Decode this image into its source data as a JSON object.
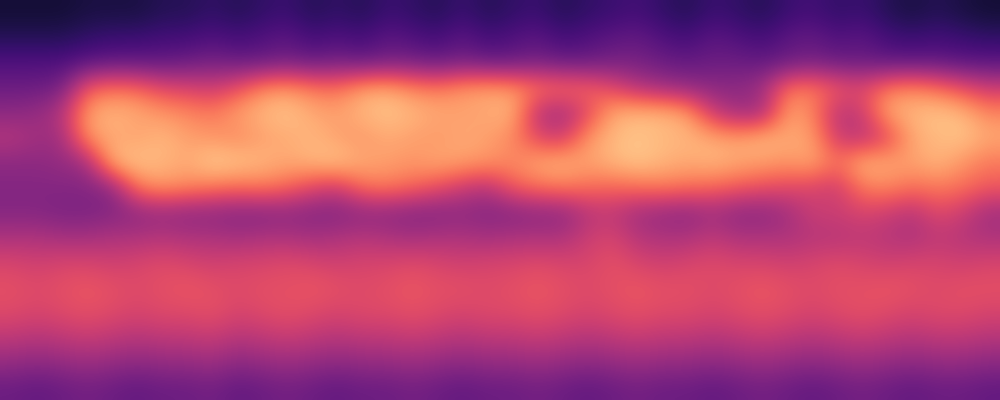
{
  "chart_data": {
    "type": "heatmap",
    "color": "magma",
    "tick_labels": false,
    "value_range": [
      0,
      1
    ],
    "cells": [
      [
        0.1,
        0.1,
        0.1,
        0.12,
        0.12,
        0.12,
        0.15,
        0.15,
        0.18,
        0.15,
        0.18,
        0.2,
        0.15,
        0.18,
        0.15,
        0.2,
        0.18,
        0.15,
        0.2,
        0.15,
        0.18,
        0.2,
        0.15,
        0.18,
        0.2,
        0.22,
        0.18,
        0.15,
        0.2,
        0.18,
        0.15,
        0.2,
        0.22,
        0.18,
        0.2,
        0.15,
        0.12,
        0.15,
        0.12,
        0.1
      ],
      [
        0.15,
        0.15,
        0.15,
        0.18,
        0.2,
        0.2,
        0.22,
        0.22,
        0.25,
        0.22,
        0.25,
        0.28,
        0.22,
        0.25,
        0.22,
        0.28,
        0.25,
        0.22,
        0.28,
        0.22,
        0.25,
        0.28,
        0.22,
        0.25,
        0.28,
        0.3,
        0.25,
        0.22,
        0.28,
        0.25,
        0.22,
        0.28,
        0.3,
        0.25,
        0.28,
        0.22,
        0.2,
        0.22,
        0.2,
        0.18
      ],
      [
        0.25,
        0.25,
        0.25,
        0.28,
        0.3,
        0.3,
        0.3,
        0.32,
        0.35,
        0.32,
        0.32,
        0.35,
        0.32,
        0.35,
        0.32,
        0.35,
        0.35,
        0.32,
        0.35,
        0.32,
        0.32,
        0.35,
        0.32,
        0.32,
        0.35,
        0.35,
        0.32,
        0.3,
        0.32,
        0.32,
        0.3,
        0.32,
        0.35,
        0.32,
        0.32,
        0.3,
        0.3,
        0.3,
        0.28,
        0.28
      ],
      [
        0.32,
        0.32,
        0.35,
        0.65,
        0.7,
        0.68,
        0.6,
        0.58,
        0.55,
        0.62,
        0.75,
        0.78,
        0.72,
        0.7,
        0.8,
        0.82,
        0.75,
        0.72,
        0.78,
        0.8,
        0.78,
        0.72,
        0.7,
        0.68,
        0.6,
        0.5,
        0.45,
        0.42,
        0.4,
        0.4,
        0.45,
        0.7,
        0.72,
        0.65,
        0.6,
        0.72,
        0.75,
        0.7,
        0.62,
        0.55
      ],
      [
        0.4,
        0.42,
        0.5,
        0.8,
        0.85,
        0.82,
        0.78,
        0.75,
        0.72,
        0.8,
        0.85,
        0.88,
        0.82,
        0.8,
        0.85,
        0.88,
        0.85,
        0.82,
        0.8,
        0.82,
        0.85,
        0.5,
        0.45,
        0.6,
        0.82,
        0.85,
        0.85,
        0.8,
        0.55,
        0.45,
        0.45,
        0.8,
        0.75,
        0.5,
        0.55,
        0.82,
        0.85,
        0.88,
        0.85,
        0.75
      ],
      [
        0.5,
        0.45,
        0.45,
        0.78,
        0.82,
        0.8,
        0.85,
        0.8,
        0.78,
        0.75,
        0.8,
        0.82,
        0.85,
        0.8,
        0.78,
        0.82,
        0.8,
        0.78,
        0.82,
        0.8,
        0.75,
        0.6,
        0.55,
        0.78,
        0.85,
        0.88,
        0.85,
        0.85,
        0.82,
        0.8,
        0.85,
        0.82,
        0.8,
        0.55,
        0.5,
        0.6,
        0.82,
        0.85,
        0.88,
        0.82
      ],
      [
        0.4,
        0.4,
        0.42,
        0.45,
        0.85,
        0.88,
        0.85,
        0.82,
        0.9,
        0.88,
        0.85,
        0.82,
        0.85,
        0.88,
        0.82,
        0.8,
        0.78,
        0.82,
        0.8,
        0.78,
        0.75,
        0.82,
        0.85,
        0.8,
        0.85,
        0.88,
        0.85,
        0.82,
        0.85,
        0.82,
        0.8,
        0.78,
        0.82,
        0.7,
        0.85,
        0.82,
        0.8,
        0.85,
        0.78,
        0.72
      ],
      [
        0.38,
        0.38,
        0.38,
        0.38,
        0.4,
        0.72,
        0.78,
        0.75,
        0.72,
        0.7,
        0.72,
        0.68,
        0.6,
        0.55,
        0.7,
        0.72,
        0.68,
        0.62,
        0.55,
        0.5,
        0.65,
        0.7,
        0.72,
        0.7,
        0.68,
        0.7,
        0.72,
        0.7,
        0.68,
        0.65,
        0.62,
        0.6,
        0.58,
        0.55,
        0.72,
        0.75,
        0.7,
        0.72,
        0.7,
        0.65
      ],
      [
        0.38,
        0.38,
        0.36,
        0.36,
        0.38,
        0.4,
        0.42,
        0.4,
        0.4,
        0.38,
        0.38,
        0.4,
        0.38,
        0.38,
        0.4,
        0.4,
        0.38,
        0.38,
        0.4,
        0.38,
        0.38,
        0.4,
        0.4,
        0.5,
        0.52,
        0.45,
        0.42,
        0.4,
        0.45,
        0.4,
        0.4,
        0.45,
        0.55,
        0.55,
        0.58,
        0.55,
        0.5,
        0.6,
        0.55,
        0.45
      ],
      [
        0.48,
        0.48,
        0.46,
        0.46,
        0.48,
        0.48,
        0.5,
        0.48,
        0.48,
        0.46,
        0.48,
        0.48,
        0.46,
        0.48,
        0.5,
        0.48,
        0.46,
        0.48,
        0.48,
        0.46,
        0.48,
        0.48,
        0.48,
        0.55,
        0.58,
        0.5,
        0.48,
        0.48,
        0.52,
        0.48,
        0.48,
        0.48,
        0.5,
        0.5,
        0.52,
        0.5,
        0.48,
        0.52,
        0.5,
        0.48
      ],
      [
        0.58,
        0.56,
        0.58,
        0.58,
        0.56,
        0.58,
        0.6,
        0.58,
        0.56,
        0.58,
        0.58,
        0.6,
        0.58,
        0.56,
        0.58,
        0.58,
        0.6,
        0.58,
        0.56,
        0.58,
        0.58,
        0.6,
        0.58,
        0.58,
        0.62,
        0.58,
        0.56,
        0.58,
        0.6,
        0.58,
        0.58,
        0.56,
        0.58,
        0.6,
        0.58,
        0.56,
        0.58,
        0.58,
        0.56,
        0.58
      ],
      [
        0.62,
        0.6,
        0.62,
        0.64,
        0.62,
        0.6,
        0.62,
        0.64,
        0.62,
        0.6,
        0.62,
        0.62,
        0.64,
        0.62,
        0.6,
        0.62,
        0.64,
        0.62,
        0.62,
        0.6,
        0.62,
        0.64,
        0.62,
        0.6,
        0.62,
        0.64,
        0.62,
        0.62,
        0.6,
        0.62,
        0.64,
        0.62,
        0.6,
        0.62,
        0.62,
        0.64,
        0.62,
        0.6,
        0.62,
        0.62
      ],
      [
        0.6,
        0.58,
        0.6,
        0.62,
        0.6,
        0.58,
        0.6,
        0.6,
        0.62,
        0.58,
        0.6,
        0.62,
        0.6,
        0.58,
        0.6,
        0.6,
        0.62,
        0.6,
        0.58,
        0.6,
        0.6,
        0.62,
        0.6,
        0.58,
        0.6,
        0.62,
        0.6,
        0.6,
        0.58,
        0.6,
        0.62,
        0.6,
        0.58,
        0.6,
        0.62,
        0.6,
        0.58,
        0.6,
        0.6,
        0.58
      ],
      [
        0.52,
        0.5,
        0.52,
        0.54,
        0.52,
        0.5,
        0.52,
        0.52,
        0.54,
        0.5,
        0.52,
        0.54,
        0.52,
        0.5,
        0.52,
        0.52,
        0.54,
        0.52,
        0.5,
        0.52,
        0.52,
        0.54,
        0.52,
        0.5,
        0.52,
        0.54,
        0.52,
        0.52,
        0.5,
        0.52,
        0.54,
        0.52,
        0.5,
        0.52,
        0.54,
        0.52,
        0.5,
        0.52,
        0.52,
        0.5
      ],
      [
        0.42,
        0.4,
        0.42,
        0.44,
        0.42,
        0.4,
        0.42,
        0.42,
        0.44,
        0.4,
        0.42,
        0.44,
        0.42,
        0.4,
        0.42,
        0.42,
        0.44,
        0.42,
        0.4,
        0.42,
        0.42,
        0.44,
        0.42,
        0.4,
        0.42,
        0.44,
        0.42,
        0.42,
        0.4,
        0.42,
        0.44,
        0.42,
        0.4,
        0.42,
        0.44,
        0.42,
        0.4,
        0.42,
        0.42,
        0.4
      ],
      [
        0.32,
        0.3,
        0.32,
        0.34,
        0.32,
        0.3,
        0.32,
        0.32,
        0.34,
        0.3,
        0.32,
        0.34,
        0.32,
        0.3,
        0.32,
        0.32,
        0.34,
        0.32,
        0.3,
        0.32,
        0.32,
        0.34,
        0.32,
        0.3,
        0.32,
        0.34,
        0.32,
        0.32,
        0.3,
        0.32,
        0.34,
        0.32,
        0.3,
        0.32,
        0.34,
        0.32,
        0.3,
        0.32,
        0.32,
        0.3
      ]
    ]
  }
}
